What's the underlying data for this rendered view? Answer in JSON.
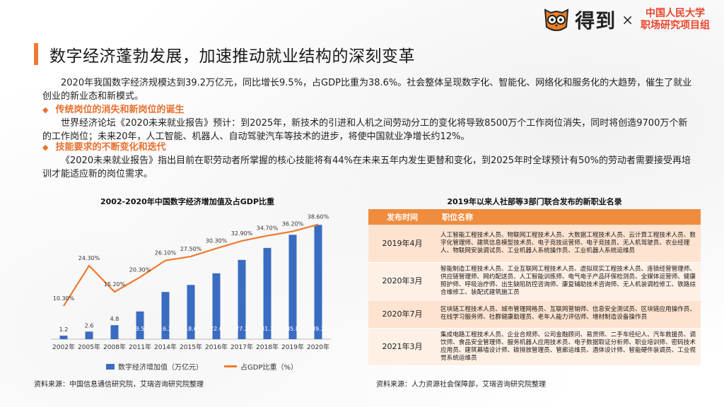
{
  "header": {
    "brand": "得到",
    "times": "×",
    "partner_line1": "中国人民大学",
    "partner_line2": "职场研究项目组"
  },
  "page_title": "数字经济蓬勃发展，加速推动就业结构的深刻变革",
  "intro": "2020年我国数字经济规模达到39.2万亿元，同比增长9.5%，占GDP比重为38.6%。社会整体呈现数字化、智能化、网络化和服务化的大趋势，催生了就业创业的新业态和新模式。",
  "section1": {
    "heading": "传统岗位的消失和新岗位的诞生",
    "text": "世界经济论坛《2020未来就业报告》预计：到2025年，新技术的引进和人机之间劳动分工的变化将导致8500万个工作岗位消失，同时将创造9700万个新的工作岗位；未来20年，人工智能、机器人、自动驾驶汽车等技术的进步，将使中国就业净增长约12%。"
  },
  "section2": {
    "heading": "技能要求的不断变化和迭代",
    "text": "《2020未来就业报告》指出目前在职劳动者所掌握的核心技能将有44%在未来五年内发生更替和变化，到2025年时全球预计有50%的劳动者需要接受再培训才能适应新的岗位需求。"
  },
  "left_chart": {
    "title": "2002-2020年中国数字经济增加值及占GDP比重",
    "legend_bar": "数字经济增加值（万亿元）",
    "legend_line": "占GDP比重（%）",
    "source": "资料来源：中国信息通信研究院，艾瑞咨询研究院整理"
  },
  "chart_data": {
    "type": "bar",
    "categories": [
      "2002年",
      "2005年",
      "2008年",
      "2011年",
      "2014年",
      "2015年",
      "2016年",
      "2017年",
      "2018年",
      "2019年",
      "2020年"
    ],
    "series": [
      {
        "name": "数字经济增加值（万亿元）",
        "kind": "bar",
        "values": [
          1.2,
          2.6,
          4.8,
          9.5,
          16.2,
          18.6,
          22.6,
          27.2,
          31.3,
          35.8,
          39.2
        ],
        "labels": [
          "1.2",
          "2.6",
          "4.8",
          "9.5",
          "16.2",
          "18.6",
          "22.6",
          "27.2",
          "31.3",
          "35.8",
          "39.2"
        ]
      },
      {
        "name": "占GDP比重（%）",
        "kind": "line",
        "values": [
          10.3,
          24.3,
          15.2,
          20.3,
          26.1,
          27.5,
          30.3,
          32.9,
          34.7,
          36.2,
          38.6
        ],
        "labels": [
          "10.30%",
          "24.30%",
          "15.20%",
          "20.30%",
          "26.10%",
          "27.50%",
          "30.30%",
          "32.90%",
          "34.70%",
          "36.20%",
          "38.60%"
        ]
      }
    ],
    "colors": {
      "bar": "#3a6cc1",
      "line": "#ef7a2e"
    },
    "legend": "bottom",
    "grid": false
  },
  "right_table": {
    "title": "2019年以来人社部等3部门联合发布的新职业名录",
    "headers": [
      "发布时间",
      "职位名称"
    ],
    "rows": [
      {
        "date": "2019年4月",
        "jobs": "人工智能工程技术人员、物联网工程技术人员、大数据工程技术人员、云计算工程技术人员、数字化管理师、建筑信息模型技术员、电子竞技运营师、电子竞技员、无人机驾驶员、农业经理人、物联网安装调试员、工业机器人系统操作员、工业机器人系统运维员"
      },
      {
        "date": "2020年3月",
        "jobs": "智能制造工程技术人员、工业互联网工程技术人员、虚拟现实工程技术人员、连锁经营管理师、供应链管理师、网约配送员、人工智能训练师、电气电子产品环保检测员、全媒体运营师、健康照护师、呼吸治疗师、出生缺陷防控咨询师、康复辅助技术咨询师、无人机装调检修工、铁路综合维修工、装配式建筑施工员"
      },
      {
        "date": "2020年7月",
        "jobs": "区块链工程技术人员、城市管理网格员、互联网营销师、信息安全测试员、区块链应用操作员、在线学习服务师、社群健康助理员、老年人能力评估师、增材制造设备操作员"
      },
      {
        "date": "2021年3月",
        "jobs": "集成电路工程技术人员、企业合规师、公司金融顾问、易货师、二手车经纪人、汽车救援员、调饮师、食品安全管理师、服务机器人应用技术员、电子数据取证分析师、职业培训师、密码技术应用员、建筑幕墙设计师、碳排放管理员、管廊运维员、酒体设计师、智能硬件装调员、工业视觉系统运维员"
      }
    ],
    "source": "资料来源：人力资源社会保障部，艾瑞咨询研究院整理"
  }
}
